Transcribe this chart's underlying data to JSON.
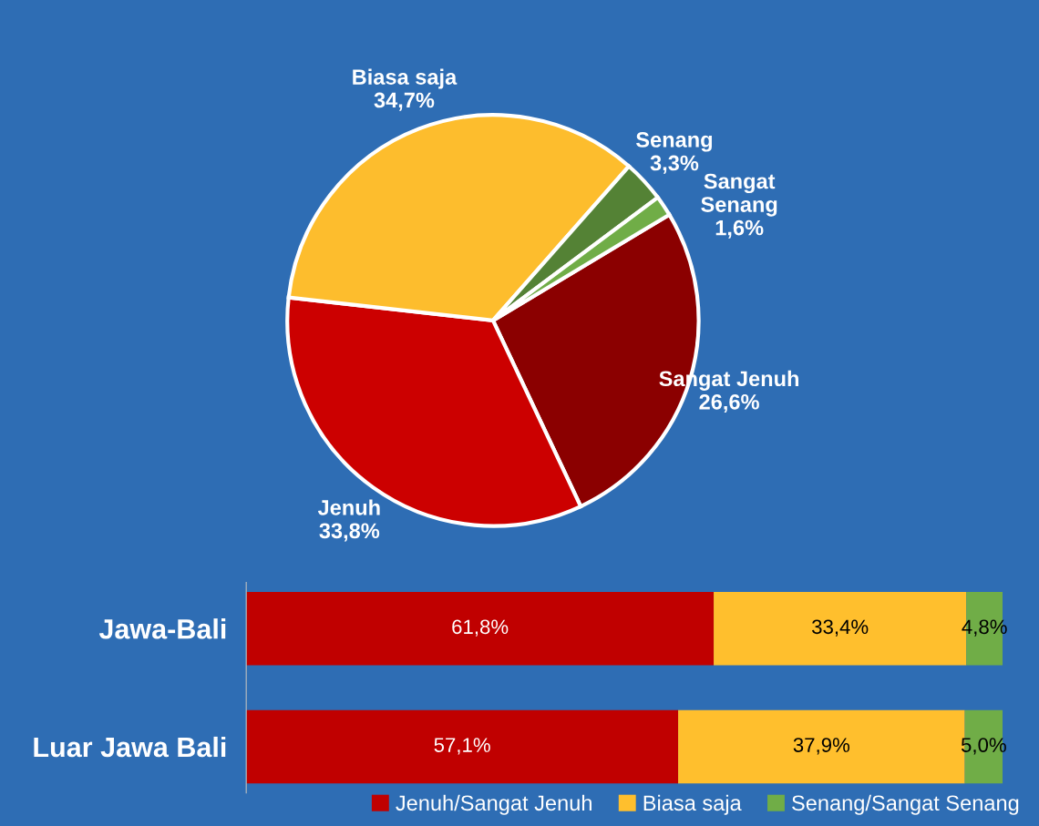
{
  "chart_data": [
    {
      "type": "pie",
      "categories": [
        "Sangat Jenuh",
        "Jenuh",
        "Biasa saja",
        "Senang",
        "Sangat\nSenang"
      ],
      "values": [
        26.6,
        33.8,
        34.7,
        3.3,
        1.6
      ],
      "colors": [
        "#8b0000",
        "#cc0000",
        "#fdbd2d",
        "#548235",
        "#70ad47"
      ],
      "value_labels": [
        "26,6%",
        "33,8%",
        "34,7%",
        "3,3%",
        "1,6%"
      ]
    },
    {
      "type": "bar",
      "orientation": "horizontal",
      "stacked": true,
      "categories": [
        "Jawa-Bali",
        "Luar Jawa Bali"
      ],
      "series": [
        {
          "name": "Jenuh/Sangat Jenuh",
          "color": "#c00000",
          "values": [
            61.8,
            57.1
          ],
          "value_labels": [
            "61,8%",
            "57,1%"
          ]
        },
        {
          "name": "Biasa saja",
          "color": "#ffbf2d",
          "values": [
            33.4,
            37.9
          ],
          "value_labels": [
            "33,4%",
            "37,9%"
          ]
        },
        {
          "name": "Senang/Sangat Senang",
          "color": "#70ad47",
          "values": [
            4.8,
            5.0
          ],
          "value_labels": [
            "4,8%",
            "5,0%"
          ]
        }
      ],
      "legend": "bottom right"
    }
  ]
}
